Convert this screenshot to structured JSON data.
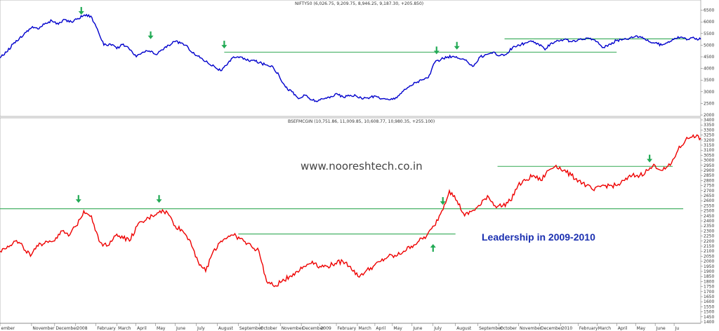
{
  "chart_data": [
    {
      "type": "line",
      "title": "NIFTY50 (6,026.75, 9,209.75, 8,946.25, 9,187.30, +205.850)",
      "color": "#0000cc",
      "ylim": [
        2000,
        6700
      ],
      "yticks": [
        2000,
        2500,
        3000,
        3500,
        4000,
        4500,
        5000,
        5500,
        6000,
        6500
      ],
      "series": [
        {
          "values": [
            4450,
            4700,
            5050,
            5300,
            5550,
            5800,
            5700,
            5950,
            6050,
            5900,
            6100,
            6000,
            6150,
            6300,
            6250,
            5700,
            5000,
            5050,
            4850,
            5050,
            4800,
            4500,
            4700,
            4750,
            4600,
            4800,
            5000,
            5150,
            5100,
            4900,
            4600,
            4450,
            4250,
            4100,
            3900,
            4150,
            4500,
            4500,
            4350,
            4350,
            4250,
            4150,
            4100,
            3700,
            3200,
            3000,
            2700,
            2850,
            2650,
            2600,
            2700,
            2800,
            2900,
            2750,
            2850,
            2800,
            2700,
            2750,
            2800,
            2700,
            2650,
            2750,
            3000,
            3200,
            3400,
            3500,
            3600,
            4250,
            4400,
            4500,
            4500,
            4400,
            4300,
            4100,
            4500,
            4600,
            4700,
            4550,
            4600,
            4900,
            5000,
            5100,
            5150,
            5050,
            4800,
            5100,
            5200,
            5250,
            5150,
            5200,
            5250,
            5300,
            5150,
            4900,
            5050,
            5200,
            5250,
            5300,
            5400,
            5350,
            5150,
            5100,
            5000,
            5150,
            5300,
            5350,
            5250,
            5300,
            5250
          ]
        }
      ],
      "levels": [
        {
          "value": 4700,
          "from": 0.32,
          "to": 0.66
        },
        {
          "value": 4700,
          "from": 0.66,
          "to": 0.88
        },
        {
          "value": 5270,
          "from": 0.72,
          "to": 0.98
        }
      ],
      "arrows": [
        {
          "at": 0.116,
          "value": 6400
        },
        {
          "at": 0.215,
          "value": 5350
        },
        {
          "at": 0.32,
          "value": 4950
        },
        {
          "at": 0.623,
          "value": 4700
        },
        {
          "at": 0.652,
          "value": 4900
        }
      ]
    },
    {
      "type": "line",
      "title": "BSEFMCGIN (10,751.86, 11,009.85, 10,608.77, 10,980.35, +255.100)",
      "color": "#ee0000",
      "ylim": [
        1400,
        3400
      ],
      "yticks": [
        1400,
        1450,
        1500,
        1550,
        1600,
        1650,
        1700,
        1750,
        1800,
        1850,
        1900,
        1950,
        2000,
        2050,
        2100,
        2150,
        2200,
        2250,
        2300,
        2350,
        2400,
        2450,
        2500,
        2550,
        2600,
        2650,
        2700,
        2750,
        2800,
        2850,
        2900,
        2950,
        3000,
        3050,
        3100,
        3150,
        3200,
        3250,
        3300,
        3350,
        3400
      ],
      "series": [
        {
          "values": [
            2100,
            2150,
            2200,
            2150,
            2050,
            2150,
            2200,
            2200,
            2300,
            2250,
            2350,
            2500,
            2450,
            2200,
            2150,
            2250,
            2250,
            2200,
            2350,
            2400,
            2450,
            2500,
            2480,
            2350,
            2300,
            2200,
            2000,
            1900,
            2100,
            2200,
            2250,
            2250,
            2200,
            2150,
            2100,
            1800,
            1750,
            1800,
            1850,
            1900,
            1950,
            2000,
            1950,
            1950,
            1980,
            2000,
            1950,
            1850,
            1900,
            1950,
            2000,
            2050,
            2050,
            2100,
            2150,
            2200,
            2250,
            2350,
            2500,
            2700,
            2600,
            2450,
            2500,
            2550,
            2650,
            2550,
            2550,
            2600,
            2750,
            2800,
            2850,
            2800,
            2900,
            2950,
            2900,
            2850,
            2800,
            2750,
            2700,
            2750,
            2750,
            2750,
            2800,
            2850,
            2850,
            2900,
            2950,
            2900,
            2950,
            3100,
            3200,
            3250,
            3220
          ]
        }
      ],
      "levels": [
        {
          "value": 2520,
          "from": 0.0,
          "to": 0.975
        },
        {
          "value": 2270,
          "from": 0.34,
          "to": 0.65
        },
        {
          "value": 2940,
          "from": 0.71,
          "to": 0.96
        }
      ],
      "arrows": [
        {
          "at": 0.112,
          "value": 2600,
          "dir": "down"
        },
        {
          "at": 0.227,
          "value": 2600,
          "dir": "down"
        },
        {
          "at": 0.632,
          "value": 2580,
          "dir": "down"
        },
        {
          "at": 0.618,
          "value": 2150,
          "dir": "up"
        },
        {
          "at": 0.927,
          "value": 3000,
          "dir": "down"
        }
      ],
      "annotation": "Leadership in 2009-2010"
    }
  ],
  "x_ticks": [
    {
      "label": "ember",
      "at": 0.0
    },
    {
      "label": "November",
      "at": 0.045
    },
    {
      "label": "December",
      "at": 0.078
    },
    {
      "label": "2008",
      "at": 0.108
    },
    {
      "label": "February",
      "at": 0.137
    },
    {
      "label": "March",
      "at": 0.167
    },
    {
      "label": "April",
      "at": 0.194
    },
    {
      "label": "May",
      "at": 0.222
    },
    {
      "label": "June",
      "at": 0.25
    },
    {
      "label": "July",
      "at": 0.28
    },
    {
      "label": "August",
      "at": 0.31
    },
    {
      "label": "September",
      "at": 0.34
    },
    {
      "label": "October",
      "at": 0.37
    },
    {
      "label": "November",
      "at": 0.4
    },
    {
      "label": "December",
      "at": 0.43
    },
    {
      "label": "2009",
      "at": 0.456
    },
    {
      "label": "February",
      "at": 0.48
    },
    {
      "label": "March",
      "at": 0.51
    },
    {
      "label": "April",
      "at": 0.535
    },
    {
      "label": "May",
      "at": 0.56
    },
    {
      "label": "June",
      "at": 0.588
    },
    {
      "label": "July",
      "at": 0.618
    },
    {
      "label": "August",
      "at": 0.65
    },
    {
      "label": "September",
      "at": 0.682
    },
    {
      "label": "October",
      "at": 0.712
    },
    {
      "label": "November",
      "at": 0.74
    },
    {
      "label": "December",
      "at": 0.77
    },
    {
      "label": "2010",
      "at": 0.8
    },
    {
      "label": "February",
      "at": 0.825
    },
    {
      "label": "March",
      "at": 0.852
    },
    {
      "label": "April",
      "at": 0.88
    },
    {
      "label": "May",
      "at": 0.907
    },
    {
      "label": "June",
      "at": 0.935
    },
    {
      "label": "Ju",
      "at": 0.962
    }
  ],
  "watermark": "www.nooreshtech.co.in",
  "colors": {
    "level_line": "#33aa55",
    "arrow": "#22aa55",
    "grid": "#dddddd"
  }
}
